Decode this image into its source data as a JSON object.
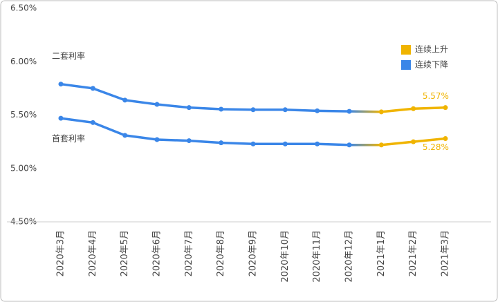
{
  "chart_data": {
    "type": "line",
    "categories": [
      "2020年3月",
      "2020年4月",
      "2020年5月",
      "2020年6月",
      "2020年7月",
      "2020年8月",
      "2020年9月",
      "2020年10月",
      "2020年11月",
      "2020年12月",
      "2021年1月",
      "2021年2月",
      "2021年3月"
    ],
    "series": [
      {
        "name": "二套利率",
        "values": [
          5.79,
          5.75,
          5.64,
          5.6,
          5.57,
          5.555,
          5.55,
          5.55,
          5.54,
          5.535,
          5.53,
          5.56,
          5.57
        ],
        "colors": [
          "#3a86e8",
          "#3a86e8",
          "#3a86e8",
          "#3a86e8",
          "#3a86e8",
          "#3a86e8",
          "#3a86e8",
          "#3a86e8",
          "#3a86e8",
          "#3a86e8",
          "#f0b400",
          "#f0b400",
          "#f0b400"
        ],
        "value_labels": [
          null,
          null,
          null,
          null,
          null,
          null,
          null,
          null,
          null,
          null,
          null,
          null,
          "5.57%"
        ]
      },
      {
        "name": "首套利率",
        "values": [
          5.47,
          5.43,
          5.31,
          5.27,
          5.26,
          5.24,
          5.23,
          5.23,
          5.23,
          5.22,
          5.22,
          5.25,
          5.28
        ],
        "colors": [
          "#3a86e8",
          "#3a86e8",
          "#3a86e8",
          "#3a86e8",
          "#3a86e8",
          "#3a86e8",
          "#3a86e8",
          "#3a86e8",
          "#3a86e8",
          "#3a86e8",
          "#f0b400",
          "#f0b400",
          "#f0b400"
        ],
        "value_labels": [
          null,
          null,
          null,
          null,
          null,
          null,
          null,
          null,
          null,
          null,
          null,
          null,
          "5.28%"
        ]
      }
    ],
    "legend": [
      {
        "name": "连续上升",
        "color": "#f0b400"
      },
      {
        "name": "连续下降",
        "color": "#3a86e8"
      }
    ],
    "ylim": [
      4.5,
      6.5
    ],
    "yticks": [
      {
        "value": 4.5,
        "label": "4.50%"
      },
      {
        "value": 5.0,
        "label": "5.00%"
      },
      {
        "value": 5.5,
        "label": "5.50%"
      },
      {
        "value": 6.0,
        "label": "6.00%"
      },
      {
        "value": 6.5,
        "label": "6.50%"
      }
    ],
    "grid": false
  }
}
